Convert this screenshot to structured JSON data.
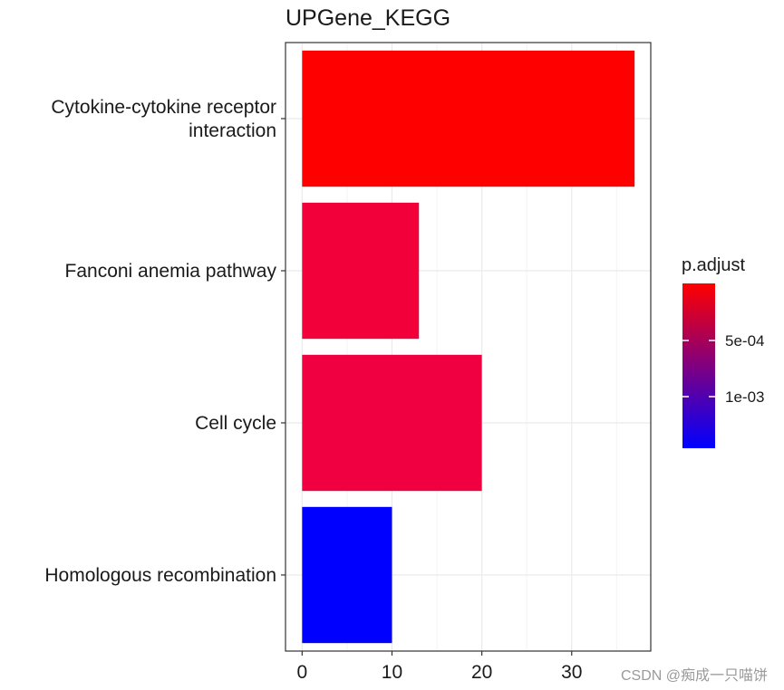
{
  "chart_data": {
    "type": "bar",
    "orientation": "horizontal",
    "title": "UPGene_KEGG",
    "xlabel": "",
    "ylabel": "",
    "categories": [
      "Cytokine-cytokine receptor\ninteraction",
      "Fanconi anemia pathway",
      "Cell cycle",
      "Homologous recombination"
    ],
    "values": [
      37,
      13,
      20,
      10
    ],
    "bar_colors": [
      "#ff0000",
      "#f2003a",
      "#f00040",
      "#0000ff"
    ],
    "xlim": [
      -1.85,
      38.8
    ],
    "xticks": [
      0,
      10,
      20,
      30
    ],
    "x_tick_labels": [
      "0",
      "10",
      "20",
      "30"
    ],
    "grid": true,
    "legend": {
      "title": "p.adjust",
      "placement": "right",
      "type": "colorbar",
      "colors": [
        "#ff0000",
        "#0000ff"
      ],
      "tick_labels": [
        "5e-04",
        "1e-03"
      ]
    }
  },
  "watermark": "CSDN @痴成一只喵饼"
}
